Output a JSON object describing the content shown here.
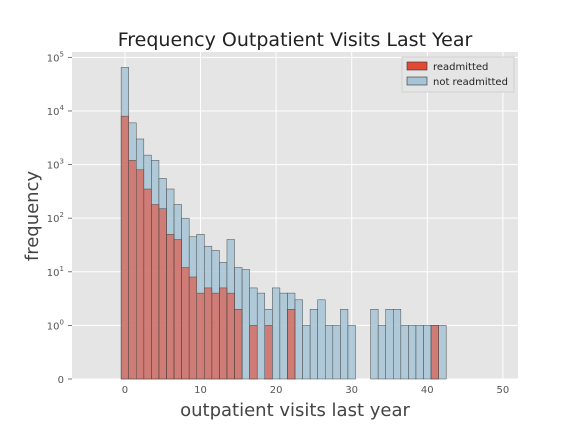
{
  "chart_data": {
    "type": "bar",
    "title": "Frequency Outpatient Visits Last Year",
    "xlabel": "outpatient visits last year",
    "ylabel": "frequency",
    "xlim": [
      -7,
      52
    ],
    "y_scale": "symlog",
    "ylim": [
      0,
      100000
    ],
    "x_ticks": [
      0,
      10,
      20,
      30,
      40,
      50
    ],
    "y_ticks": [
      {
        "value": 0,
        "base": "0",
        "exp": ""
      },
      {
        "value": 1,
        "base": "10",
        "exp": "0"
      },
      {
        "value": 10,
        "base": "10",
        "exp": "1"
      },
      {
        "value": 100,
        "base": "10",
        "exp": "2"
      },
      {
        "value": 1000,
        "base": "10",
        "exp": "3"
      },
      {
        "value": 10000,
        "base": "10",
        "exp": "4"
      },
      {
        "value": 100000,
        "base": "10",
        "exp": "5"
      }
    ],
    "grid": true,
    "legend_position": "top-right",
    "series": [
      {
        "name": "not readmitted",
        "color": "#a6c4d6",
        "bins": [
          {
            "x": -0.5,
            "count": 65000
          },
          {
            "x": 0.5,
            "count": 6000
          },
          {
            "x": 1.5,
            "count": 3000
          },
          {
            "x": 2.5,
            "count": 1500
          },
          {
            "x": 3.5,
            "count": 1200
          },
          {
            "x": 4.5,
            "count": 550
          },
          {
            "x": 5.5,
            "count": 350
          },
          {
            "x": 6.5,
            "count": 180
          },
          {
            "x": 7.5,
            "count": 100
          },
          {
            "x": 8.5,
            "count": 45
          },
          {
            "x": 9.5,
            "count": 50
          },
          {
            "x": 10.5,
            "count": 30
          },
          {
            "x": 11.5,
            "count": 25
          },
          {
            "x": 12.5,
            "count": 15
          },
          {
            "x": 13.5,
            "count": 40
          },
          {
            "x": 14.5,
            "count": 12
          },
          {
            "x": 15.5,
            "count": 11
          },
          {
            "x": 16.5,
            "count": 5
          },
          {
            "x": 17.5,
            "count": 4
          },
          {
            "x": 18.5,
            "count": 2
          },
          {
            "x": 19.5,
            "count": 5
          },
          {
            "x": 20.5,
            "count": 4
          },
          {
            "x": 21.5,
            "count": 4
          },
          {
            "x": 22.5,
            "count": 3
          },
          {
            "x": 23.5,
            "count": 1
          },
          {
            "x": 24.5,
            "count": 2
          },
          {
            "x": 25.5,
            "count": 3
          },
          {
            "x": 26.5,
            "count": 1
          },
          {
            "x": 27.5,
            "count": 1
          },
          {
            "x": 28.5,
            "count": 2
          },
          {
            "x": 29.5,
            "count": 1
          },
          {
            "x": 32.5,
            "count": 2
          },
          {
            "x": 33.5,
            "count": 1
          },
          {
            "x": 34.5,
            "count": 2
          },
          {
            "x": 35.5,
            "count": 2
          },
          {
            "x": 36.5,
            "count": 1
          },
          {
            "x": 37.5,
            "count": 1
          },
          {
            "x": 38.5,
            "count": 1
          },
          {
            "x": 39.5,
            "count": 1
          },
          {
            "x": 40.5,
            "count": 1
          },
          {
            "x": 41.5,
            "count": 1
          }
        ]
      },
      {
        "name": "readmitted",
        "color": "#e24a33",
        "bins": [
          {
            "x": -0.5,
            "count": 8000
          },
          {
            "x": 0.5,
            "count": 1200
          },
          {
            "x": 1.5,
            "count": 800
          },
          {
            "x": 2.5,
            "count": 350
          },
          {
            "x": 3.5,
            "count": 180
          },
          {
            "x": 4.5,
            "count": 150
          },
          {
            "x": 5.5,
            "count": 50
          },
          {
            "x": 6.5,
            "count": 40
          },
          {
            "x": 7.5,
            "count": 12
          },
          {
            "x": 8.5,
            "count": 8
          },
          {
            "x": 9.5,
            "count": 4
          },
          {
            "x": 10.5,
            "count": 5
          },
          {
            "x": 11.5,
            "count": 4
          },
          {
            "x": 12.5,
            "count": 5
          },
          {
            "x": 13.5,
            "count": 4
          },
          {
            "x": 14.5,
            "count": 2
          },
          {
            "x": 16.5,
            "count": 1
          },
          {
            "x": 18.5,
            "count": 1
          },
          {
            "x": 21.5,
            "count": 2
          },
          {
            "x": 40.5,
            "count": 1
          }
        ]
      }
    ]
  }
}
